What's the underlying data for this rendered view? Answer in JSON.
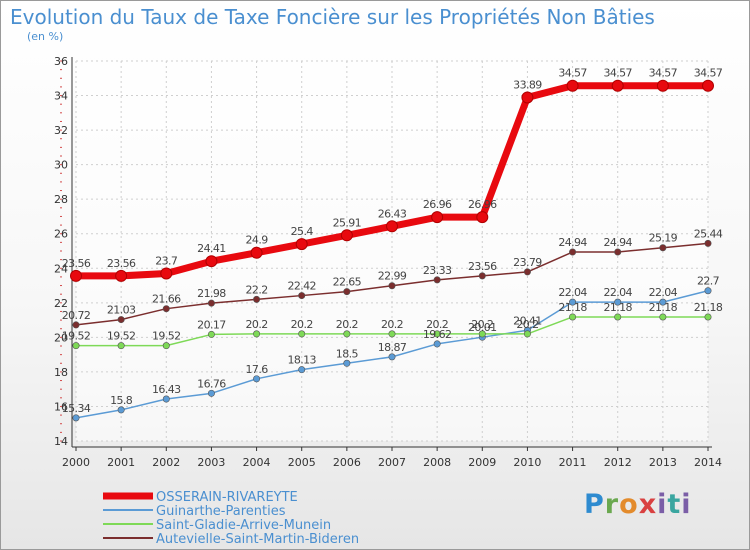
{
  "title": "Evolution du Taux de Taxe Foncière sur les Propriétés Non Bâties",
  "unit_label": "(en %)",
  "brand": "Proxiti",
  "chart_data": {
    "type": "line",
    "title": "Evolution du Taux de Taxe Foncière sur les Propriétés Non Bâties",
    "ylabel": "(en %)",
    "xlabel": "",
    "ylim": [
      14,
      36
    ],
    "yticks": [
      14,
      16,
      18,
      20,
      22,
      24,
      26,
      28,
      30,
      32,
      34,
      36
    ],
    "grid": true,
    "legend": "bottom-left",
    "categories": [
      "2000",
      "2001",
      "2002",
      "2003",
      "2004",
      "2005",
      "2006",
      "2007",
      "2008",
      "2009",
      "2010",
      "2011",
      "2012",
      "2013",
      "2014"
    ],
    "series": [
      {
        "name": "OSSERAIN-RIVAREYTE",
        "color": "#e8090f",
        "values": [
          23.56,
          23.56,
          23.7,
          24.41,
          24.9,
          25.4,
          25.91,
          26.43,
          26.96,
          26.96,
          33.89,
          34.57,
          34.57,
          34.57,
          34.57
        ],
        "labels": [
          "23.56",
          "23.56",
          "23.7",
          "24.41",
          "24.9",
          "25.4",
          "25.91",
          "26.43",
          "26.96",
          "26.96",
          "33.89",
          "34.57",
          "34.57",
          "34.57",
          "34.57"
        ]
      },
      {
        "name": "Guinarthe-Parenties",
        "color": "#5b9bd5",
        "values": [
          15.34,
          15.8,
          16.43,
          16.76,
          17.6,
          18.13,
          18.5,
          18.87,
          19.62,
          20.01,
          20.41,
          22.04,
          22.04,
          22.04,
          22.7
        ],
        "labels": [
          "15.34",
          "15.8",
          "16.43",
          "16.76",
          "17.6",
          "18.13",
          "18.5",
          "18.87",
          "19.62",
          "20.01",
          "20.41",
          "22.04",
          "22.04",
          "22.04",
          "22.7"
        ]
      },
      {
        "name": "Saint-Gladie-Arrive-Munein",
        "color": "#7ed957",
        "values": [
          19.52,
          19.52,
          19.52,
          20.17,
          20.2,
          20.2,
          20.2,
          20.2,
          20.2,
          20.2,
          20.2,
          21.18,
          21.18,
          21.18,
          21.18
        ],
        "labels": [
          "19.52",
          "19.52",
          "19.52",
          "20.17",
          "20.2",
          "20.2",
          "20.2",
          "20.2",
          "20.2",
          "20.2",
          "20.2",
          "21.18",
          "21.18",
          "21.18",
          "21.18"
        ]
      },
      {
        "name": "Autevielle-Saint-Martin-Bideren",
        "color": "#7b2e2e",
        "values": [
          20.72,
          21.03,
          21.66,
          21.98,
          22.2,
          22.42,
          22.65,
          22.99,
          23.33,
          23.56,
          23.79,
          24.94,
          24.94,
          25.19,
          25.44
        ],
        "labels": [
          "20.72",
          "21.03",
          "21.66",
          "21.98",
          "22.2",
          "22.42",
          "22.65",
          "22.99",
          "23.33",
          "23.56",
          "23.79",
          "24.94",
          "24.94",
          "25.19",
          "25.44"
        ]
      }
    ]
  }
}
